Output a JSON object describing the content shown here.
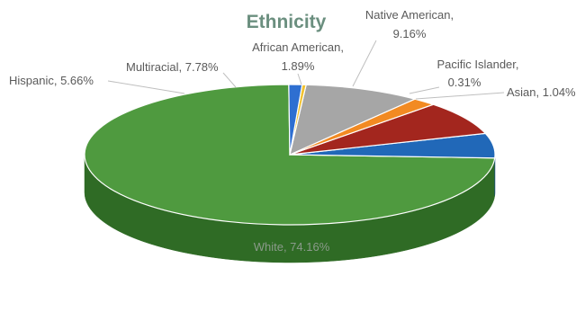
{
  "chart_data": {
    "type": "pie",
    "title": "Ethnicity",
    "slices": [
      {
        "name": "White",
        "value": 74.16,
        "label": "White, 74.16%",
        "color": "#4f9a3f",
        "dark": "#2f6b25"
      },
      {
        "name": "Hispanic",
        "value": 5.66,
        "label": "Hispanic, 5.66%",
        "color": "#2168b8",
        "dark": "#154a85"
      },
      {
        "name": "Multiracial",
        "value": 7.78,
        "label": "Multiracial, 7.78%",
        "color": "#a3261e",
        "dark": "#6f1812"
      },
      {
        "name": "African American",
        "value": 1.89,
        "label_lines": [
          "African American,",
          "1.89%"
        ],
        "color": "#f28a22",
        "dark": "#b5620f"
      },
      {
        "name": "Native American",
        "value": 9.16,
        "label_lines": [
          "Native American,",
          "9.16%"
        ],
        "color": "#a6a6a6",
        "dark": "#7a7a7a"
      },
      {
        "name": "Pacific Islander",
        "value": 0.31,
        "label_lines": [
          "Pacific Islander,",
          "0.31%"
        ],
        "color": "#f2c230",
        "dark": "#b58d16"
      },
      {
        "name": "Asian",
        "value": 1.04,
        "label": "Asian, 1.04%",
        "color": "#2e6fd1",
        "dark": "#1c4d96"
      }
    ]
  }
}
